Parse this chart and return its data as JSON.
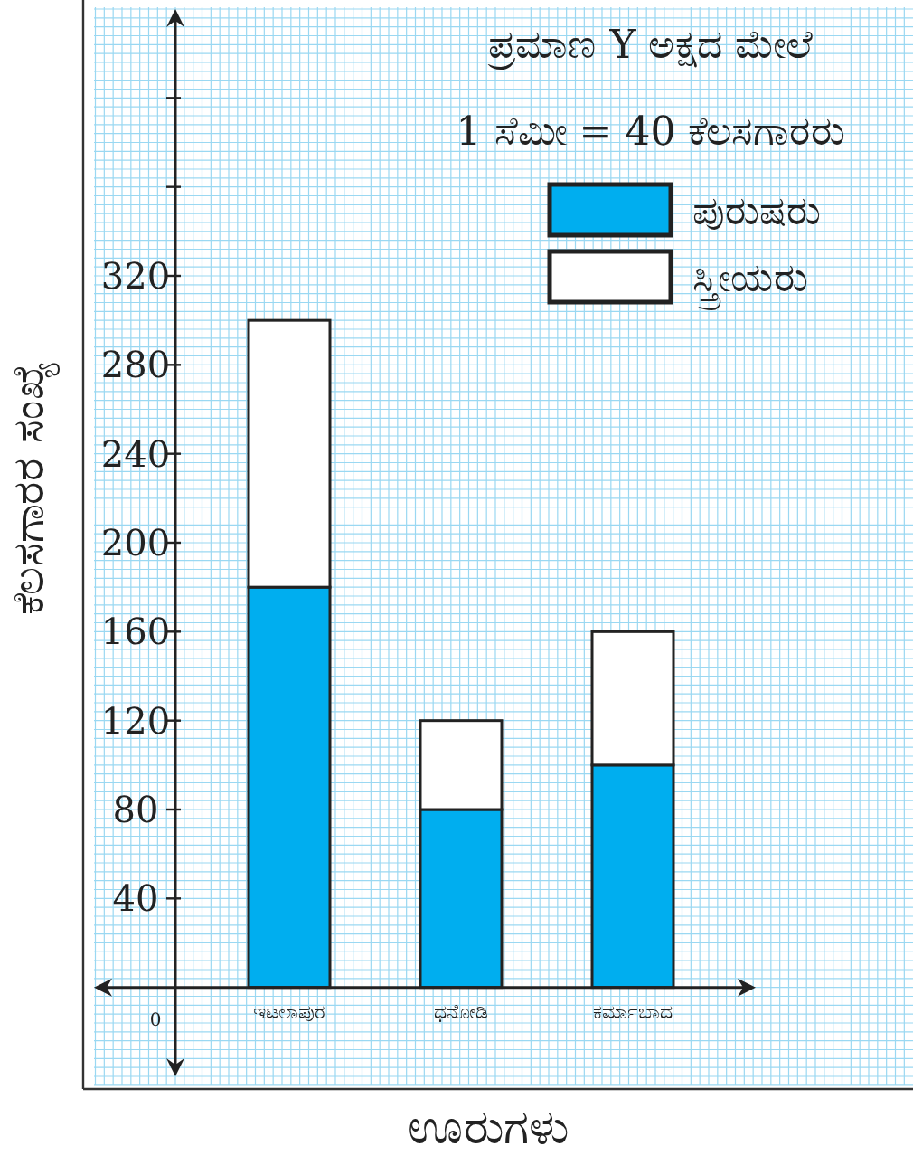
{
  "chart_data": {
    "type": "bar",
    "stacked": true,
    "xlabel": "ಊರುಗಳು",
    "ylabel": "ಕೆಲಸಗಾರರ ಸಂಖ್ಯೆ",
    "annotations": [
      "ಪ್ರಮಾಣ Y ಅಕ್ಷದ ಮೇಲೆ",
      "1 ಸೆಮೀ = 40 ಕೆಲಸಗಾರರು",
      "0"
    ],
    "categories": [
      "ಇಟಲಾಪುರ",
      "ಧನೋಡಿ",
      "ಕರ್ಮಾಬಾದ"
    ],
    "series": [
      {
        "name": "ಪುರುಷರು",
        "color": "#00aeef",
        "values": [
          180,
          80,
          100
        ]
      },
      {
        "name": "ಸ್ತ್ರೀಯರು",
        "color": "#ffffff",
        "values": [
          120,
          40,
          60
        ]
      }
    ],
    "ylim": [
      -40,
      440
    ],
    "yticks": [
      40,
      80,
      120,
      160,
      200,
      240,
      280,
      320,
      {
        "value": 360,
        "label": null
      },
      {
        "value": 400,
        "label": null
      }
    ],
    "grid": true,
    "legend": "top right"
  }
}
